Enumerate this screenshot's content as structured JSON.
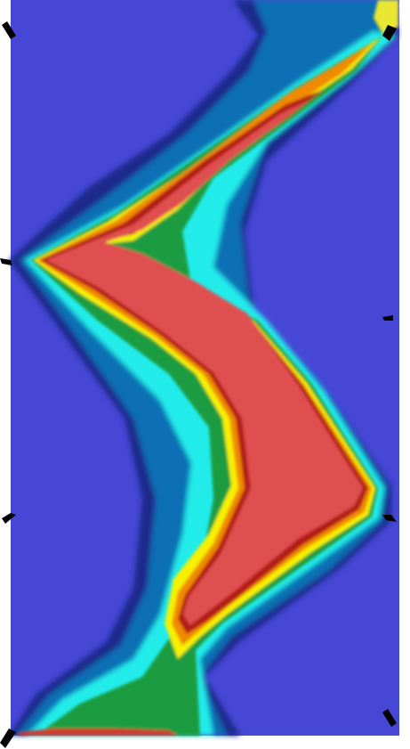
{
  "image": {
    "kind": "field-contour-plot",
    "colormap": [
      "#4747d6",
      "#1a2a8c",
      "#0a5aa8",
      "#00b7d6",
      "#22ecea",
      "#00a060",
      "#1a8c1a",
      "#f7f000",
      "#f08a00",
      "#b41e14",
      "#e05050"
    ],
    "background_color": "#ffffff",
    "base_color": "#4747d6",
    "core_color": "#e05050",
    "marker_color": "#000000",
    "markers": [
      "arrow-marker",
      "arrow-marker",
      "arrow-marker",
      "arrow-marker",
      "arrow-marker",
      "arrow-marker",
      "arrow-marker",
      "arrow-marker"
    ]
  }
}
